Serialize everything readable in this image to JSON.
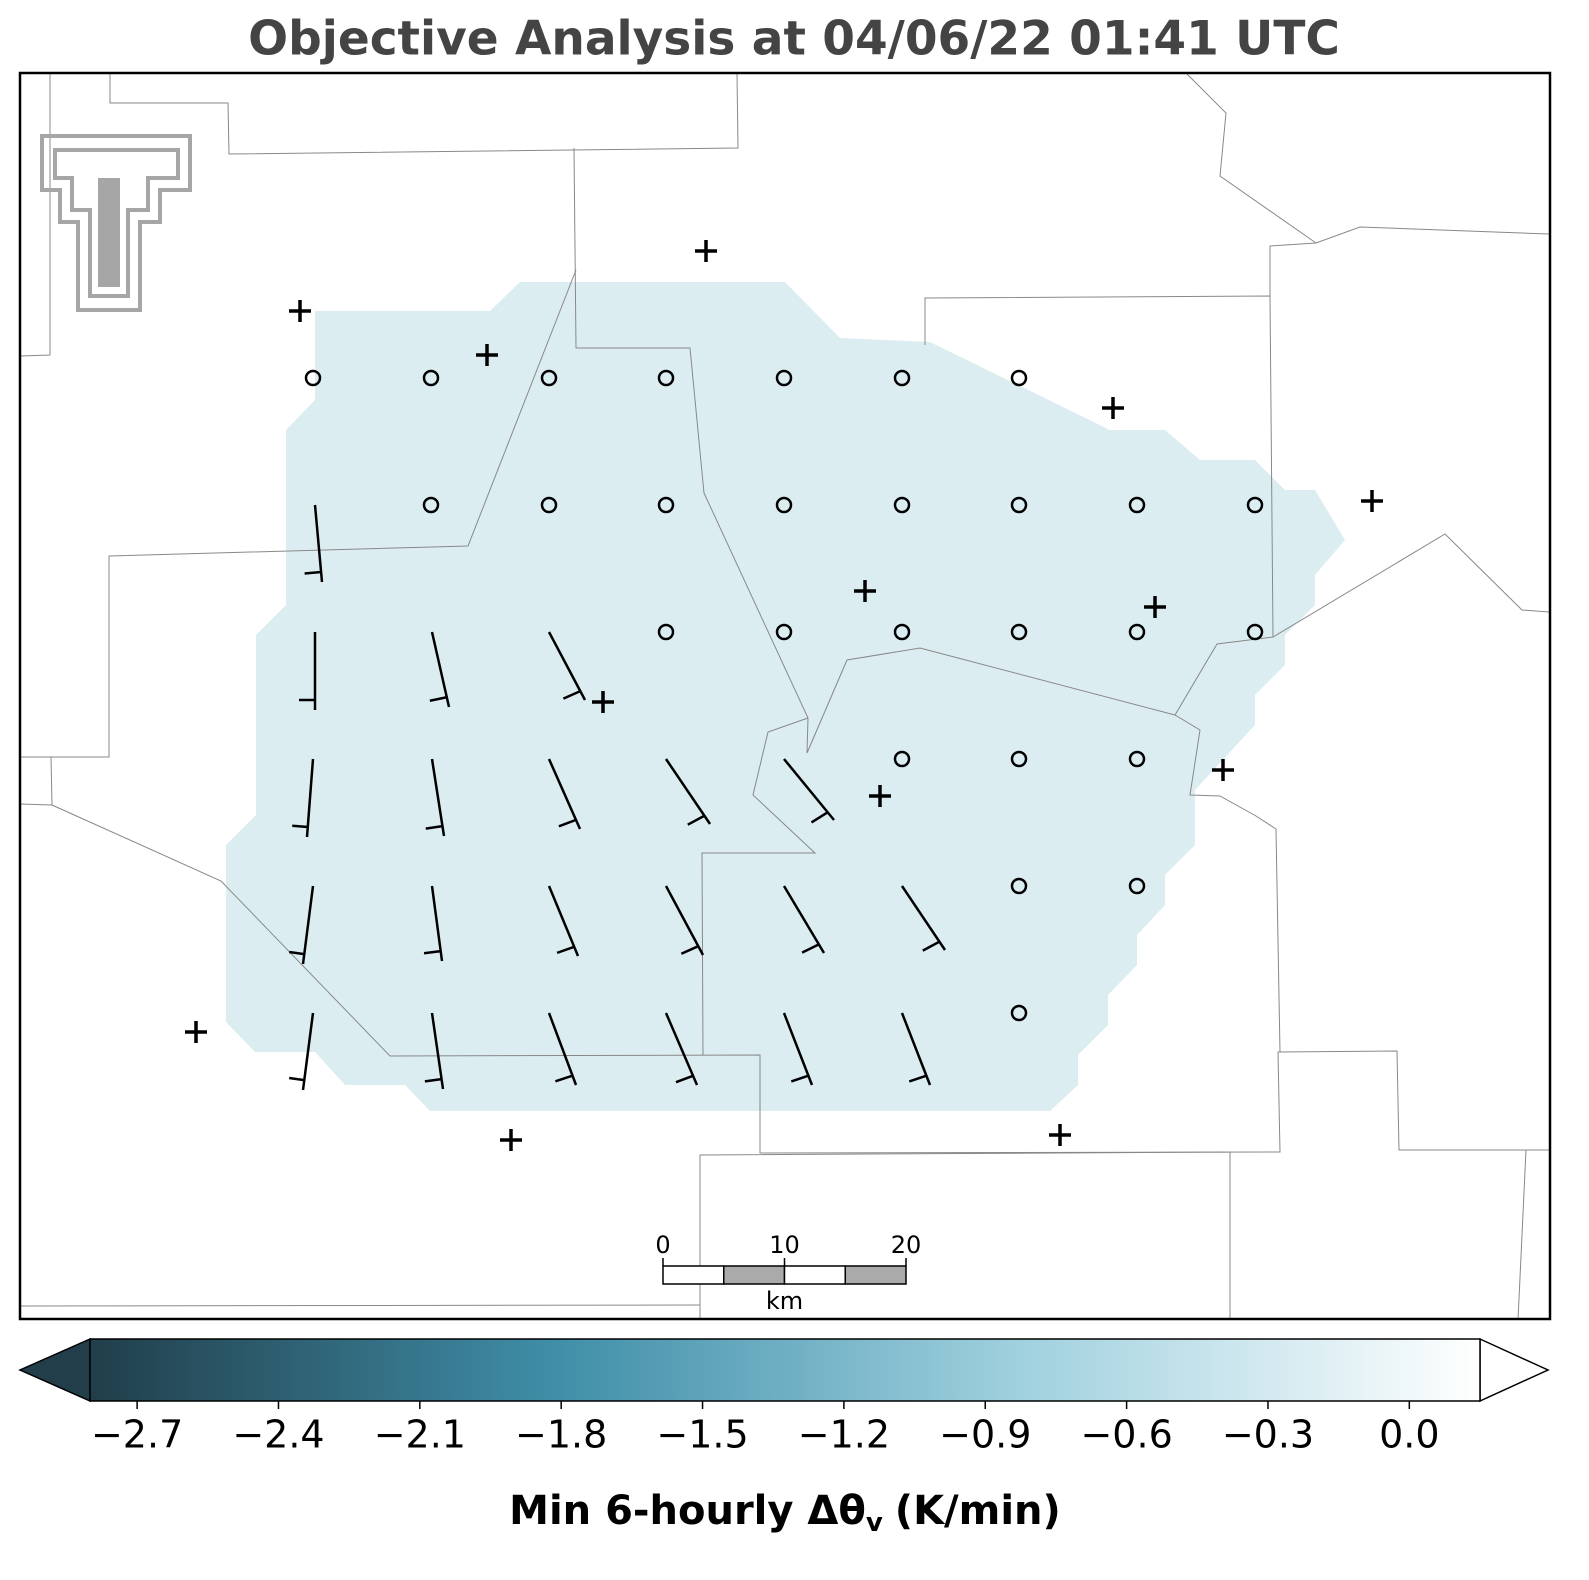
{
  "title": "Objective Analysis at 04/06/22 01:41 UTC",
  "map": {
    "field_color": "#dcedf2"
  },
  "scale_bar": {
    "ticks": [
      0,
      10,
      20
    ],
    "unit": "km"
  },
  "colorbar": {
    "lim": [
      -2.8,
      0.15
    ],
    "ticks": [
      {
        "value": -2.7,
        "label": "−2.7"
      },
      {
        "value": -2.4,
        "label": "−2.4"
      },
      {
        "value": -2.1,
        "label": "−2.1"
      },
      {
        "value": -1.8,
        "label": "−1.8"
      },
      {
        "value": -1.5,
        "label": "−1.5"
      },
      {
        "value": -1.2,
        "label": "−1.2"
      },
      {
        "value": -0.9,
        "label": "−0.9"
      },
      {
        "value": -0.6,
        "label": "−0.6"
      },
      {
        "value": -0.3,
        "label": "−0.3"
      },
      {
        "value": 0,
        "label": "0.0"
      }
    ],
    "colors": [
      "#213e4a",
      "#3f8ea8",
      "#9fd0de",
      "#ffffff"
    ],
    "label": "Min 6-hourly Δθ",
    "label_subscript": "v",
    "label_unit": "(K/min)"
  }
}
